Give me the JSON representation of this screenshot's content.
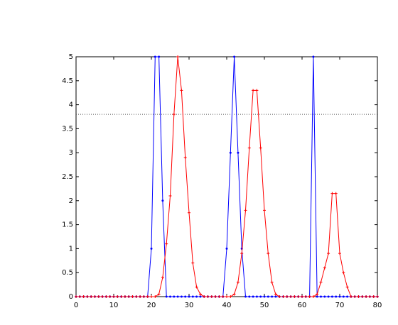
{
  "chart_data": {
    "type": "line",
    "x": [
      0,
      1,
      2,
      3,
      4,
      5,
      6,
      7,
      8,
      9,
      10,
      11,
      12,
      13,
      14,
      15,
      16,
      17,
      18,
      19,
      20,
      21,
      22,
      23,
      24,
      25,
      26,
      27,
      28,
      29,
      30,
      31,
      32,
      33,
      34,
      35,
      36,
      37,
      38,
      39,
      40,
      41,
      42,
      43,
      44,
      45,
      46,
      47,
      48,
      49,
      50,
      51,
      52,
      53,
      54,
      55,
      56,
      57,
      58,
      59,
      60,
      61,
      62,
      63,
      64,
      65,
      66,
      67,
      68,
      69,
      70,
      71,
      72,
      73,
      74,
      75,
      76,
      77,
      78,
      79,
      80
    ],
    "series": [
      {
        "color": "#0000ff",
        "marker": "dot",
        "values": [
          0,
          0,
          0,
          0,
          0,
          0,
          0,
          0,
          0,
          0,
          0,
          0,
          0,
          0,
          0,
          0,
          0,
          0,
          0,
          0,
          1,
          5,
          5,
          2,
          0,
          0,
          0,
          0,
          0,
          0,
          0,
          0,
          0,
          0,
          0,
          0,
          0,
          0,
          0,
          0,
          1,
          3,
          5,
          3,
          1,
          0,
          0,
          0,
          0,
          0,
          0,
          0,
          0,
          0,
          0,
          0,
          0,
          0,
          0,
          0,
          0,
          0,
          0,
          5,
          0,
          0,
          0,
          0,
          0,
          0,
          0,
          0,
          0,
          0,
          0,
          0,
          0,
          0,
          0,
          0,
          0
        ]
      },
      {
        "color": "#ff0000",
        "marker": "plus",
        "values": [
          0,
          0,
          0,
          0,
          0,
          0,
          0,
          0,
          0,
          0,
          0,
          0,
          0,
          0,
          0,
          0,
          0,
          0,
          0,
          0,
          0,
          0,
          0.05,
          0.4,
          1.1,
          2.1,
          3.8,
          5,
          4.3,
          2.9,
          1.75,
          0.7,
          0.2,
          0.05,
          0,
          0,
          0,
          0,
          0,
          0,
          0,
          0,
          0.05,
          0.3,
          0.9,
          1.8,
          3.1,
          4.3,
          4.3,
          3.1,
          1.8,
          0.9,
          0.3,
          0.05,
          0,
          0,
          0,
          0,
          0,
          0,
          0,
          0,
          0,
          0,
          0.05,
          0.3,
          0.6,
          0.9,
          2.15,
          2.15,
          0.9,
          0.5,
          0.2,
          0,
          0,
          0,
          0,
          0,
          0,
          0,
          0
        ]
      }
    ],
    "threshold": 3.8,
    "xlim": [
      0,
      80
    ],
    "xticks": [
      0,
      10,
      20,
      30,
      40,
      50,
      60,
      70,
      80
    ],
    "ylim": [
      0,
      5
    ],
    "yticks": [
      0,
      0.5,
      1,
      1.5,
      2,
      2.5,
      3,
      3.5,
      4,
      4.5,
      5
    ]
  }
}
